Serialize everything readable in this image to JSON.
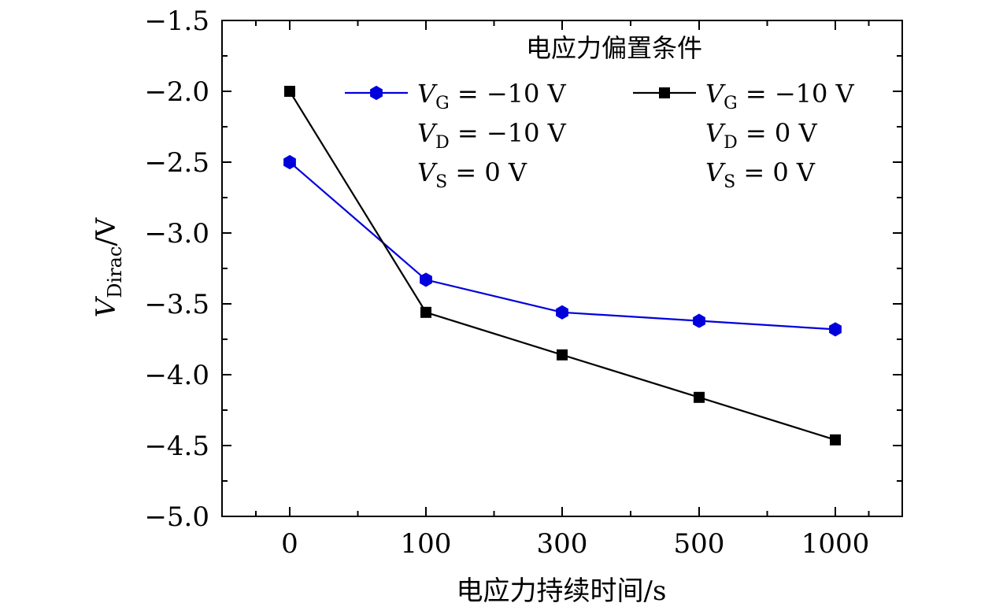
{
  "chart_data": {
    "type": "line",
    "categories": [
      "0",
      "100",
      "300",
      "500",
      "1000"
    ],
    "xlabel": "电应力持续时间/s",
    "ylabel_main": "V",
    "ylabel_sub": "Dirac",
    "ylabel_unit": "/V",
    "ylim": [
      -5.0,
      -1.5
    ],
    "yticks": [
      -1.5,
      -2.0,
      -2.5,
      -3.0,
      -3.5,
      -4.0,
      -4.5,
      -5.0
    ],
    "ytick_labels": [
      "−1.5",
      "−2.0",
      "−2.5",
      "−3.0",
      "−3.5",
      "−4.0",
      "−4.5",
      "−5.0"
    ],
    "legend_title": "电应力偏置条件",
    "series": [
      {
        "name": "VG = −10 V, VD = −10 V, VS = 0 V",
        "color": "#0000dd",
        "marker": "hexagon",
        "values": [
          -2.5,
          -3.33,
          -3.56,
          -3.62,
          -3.68
        ],
        "legend_lines": [
          {
            "v": "V",
            "sub": "G",
            "rest": " = −10 V"
          },
          {
            "v": "V",
            "sub": "D",
            "rest": " = −10 V"
          },
          {
            "v": "V",
            "sub": "S",
            "rest": " = 0 V"
          }
        ]
      },
      {
        "name": "VG = −10 V, VD = 0 V, VS = 0 V",
        "color": "#000000",
        "marker": "square",
        "values": [
          -2.0,
          -3.56,
          -3.86,
          -4.16,
          -4.46
        ],
        "legend_lines": [
          {
            "v": "V",
            "sub": "G",
            "rest": " = −10 V"
          },
          {
            "v": "V",
            "sub": "D",
            "rest": " = 0 V"
          },
          {
            "v": "V",
            "sub": "S",
            "rest": " = 0 V"
          }
        ]
      }
    ]
  }
}
